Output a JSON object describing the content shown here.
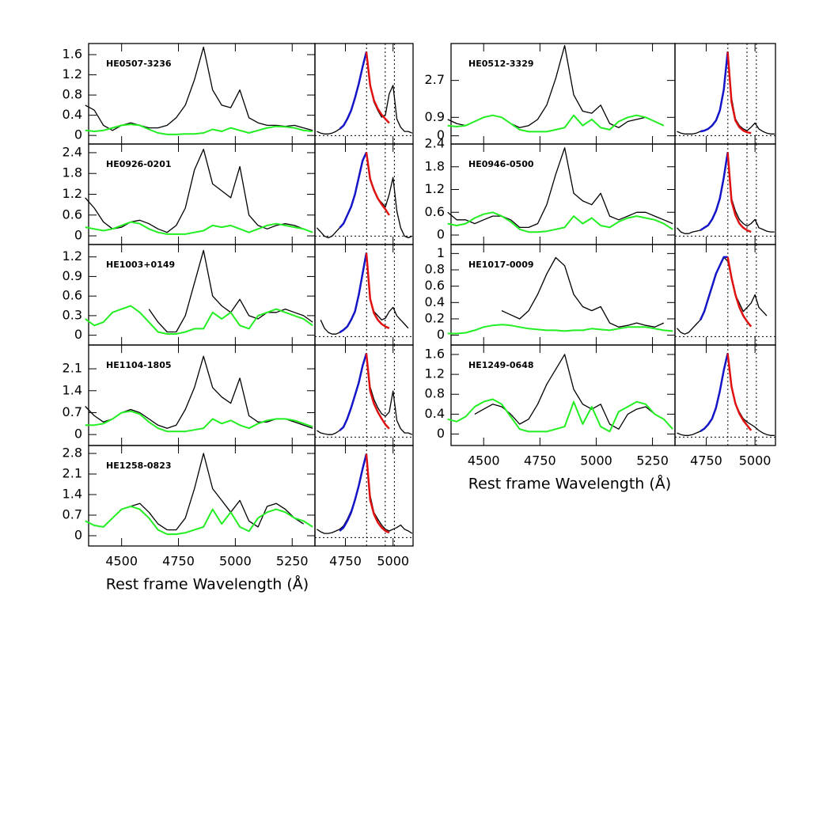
{
  "chart_data": {
    "type": "line",
    "x_label": "Rest frame Wavelength (Å)",
    "colors": {
      "spectrum": "#000000",
      "feii": "#22ee22",
      "blue": "#1515c8",
      "red": "#e01010"
    },
    "wide": {
      "xlim": [
        4355,
        5350
      ],
      "xticks": [
        4500,
        4750,
        5000,
        5250
      ],
      "x": [
        4340,
        4380,
        4420,
        4460,
        4500,
        4540,
        4580,
        4620,
        4660,
        4700,
        4740,
        4780,
        4820,
        4860,
        4900,
        4940,
        4980,
        5020,
        5060,
        5100,
        5140,
        5180,
        5220,
        5260,
        5300,
        5340
      ]
    },
    "zoom": {
      "xlim": [
        4590,
        5105
      ],
      "xticks": [
        4750,
        5000
      ],
      "ylim": [
        -0.1,
        1.1
      ],
      "lines": [
        4861,
        4959,
        5007
      ],
      "x": [
        4600,
        4620,
        4640,
        4660,
        4680,
        4700,
        4720,
        4740,
        4760,
        4780,
        4800,
        4820,
        4840,
        4860,
        4880,
        4900,
        4920,
        4940,
        4960,
        4980,
        5000,
        5020,
        5040,
        5060,
        5080,
        5100
      ],
      "blue_x": [
        4720,
        4740,
        4760,
        4780,
        4800,
        4820,
        4840,
        4860
      ],
      "red_x": [
        4860,
        4880,
        4900,
        4920,
        4940,
        4960,
        4980
      ]
    },
    "columns": [
      [
        {
          "name": "HE0507-3236",
          "ylim": [
            -0.17,
            1.82
          ],
          "yticks": [
            0,
            0.4,
            0.8,
            1.2,
            1.6
          ],
          "spectrum": [
            0.6,
            0.5,
            0.2,
            0.1,
            0.2,
            0.25,
            0.2,
            0.15,
            0.15,
            0.2,
            0.35,
            0.6,
            1.1,
            1.75,
            0.9,
            0.6,
            0.55,
            0.9,
            0.35,
            0.25,
            0.2,
            0.2,
            0.18,
            0.2,
            0.15,
            0.1
          ],
          "feii": [
            0.1,
            0.08,
            0.1,
            0.15,
            0.2,
            0.22,
            0.2,
            0.12,
            0.05,
            0.02,
            0.02,
            0.03,
            0.03,
            0.05,
            0.12,
            0.08,
            0.15,
            0.1,
            0.05,
            0.1,
            0.15,
            0.18,
            0.17,
            0.15,
            0.1,
            0.08
          ],
          "zoom_spectrum": [
            0.05,
            0.03,
            0.02,
            0.02,
            0.03,
            0.05,
            0.08,
            0.12,
            0.2,
            0.3,
            0.45,
            0.62,
            0.82,
            1.0,
            0.6,
            0.4,
            0.3,
            0.22,
            0.25,
            0.5,
            0.6,
            0.2,
            0.1,
            0.05,
            0.05,
            0.03
          ],
          "blue": [
            0.08,
            0.12,
            0.2,
            0.3,
            0.45,
            0.62,
            0.82,
            1.0
          ],
          "red": [
            1.0,
            0.6,
            0.42,
            0.32,
            0.25,
            0.2,
            0.15
          ]
        },
        {
          "name": "HE0926-0201",
          "ylim": [
            -0.25,
            2.65
          ],
          "yticks": [
            0,
            0.6,
            1.2,
            1.8,
            2.4
          ],
          "spectrum": [
            1.1,
            0.8,
            0.4,
            0.2,
            0.25,
            0.4,
            0.45,
            0.35,
            0.2,
            0.1,
            0.3,
            0.8,
            1.9,
            2.5,
            1.5,
            1.3,
            1.1,
            2.0,
            0.6,
            0.3,
            0.2,
            0.3,
            0.35,
            0.3,
            0.2,
            0.1
          ],
          "feii": [
            0.25,
            0.2,
            0.15,
            0.2,
            0.3,
            0.4,
            0.35,
            0.2,
            0.1,
            0.05,
            0.05,
            0.05,
            0.1,
            0.15,
            0.3,
            0.25,
            0.3,
            0.2,
            0.1,
            0.2,
            0.3,
            0.35,
            0.3,
            0.25,
            0.2,
            0.1
          ],
          "zoom_spectrum": [
            0.1,
            0.05,
            0.0,
            -0.02,
            0.0,
            0.05,
            0.1,
            0.15,
            0.25,
            0.35,
            0.5,
            0.7,
            0.9,
            1.0,
            0.7,
            0.55,
            0.45,
            0.4,
            0.35,
            0.5,
            0.7,
            0.3,
            0.1,
            0.0,
            -0.02,
            0.0
          ],
          "blue": [
            0.1,
            0.15,
            0.25,
            0.35,
            0.5,
            0.7,
            0.9,
            1.0
          ],
          "red": [
            1.0,
            0.68,
            0.55,
            0.45,
            0.38,
            0.32,
            0.25
          ]
        },
        {
          "name": "HE1003+0149",
          "ylim": [
            -0.15,
            1.39
          ],
          "yticks": [
            0,
            0.3,
            0.6,
            0.9,
            1.2
          ],
          "spectrum": [
            null,
            null,
            null,
            null,
            null,
            null,
            null,
            0.4,
            0.2,
            0.05,
            0.05,
            0.3,
            0.8,
            1.3,
            0.6,
            0.45,
            0.35,
            0.55,
            0.3,
            0.25,
            0.35,
            0.35,
            0.4,
            0.35,
            0.3,
            0.2
          ],
          "feii": [
            0.25,
            0.15,
            0.2,
            0.35,
            0.4,
            0.45,
            0.35,
            0.2,
            0.05,
            0.02,
            0.02,
            0.05,
            0.1,
            0.1,
            0.35,
            0.25,
            0.35,
            0.15,
            0.1,
            0.3,
            0.35,
            0.4,
            0.35,
            0.3,
            0.25,
            0.15
          ],
          "zoom_spectrum": [
            null,
            0.2,
            0.1,
            0.05,
            0.03,
            0.03,
            0.05,
            0.08,
            0.12,
            0.2,
            0.3,
            0.5,
            0.75,
            1.0,
            0.45,
            0.3,
            0.25,
            0.2,
            0.22,
            0.3,
            0.35,
            0.25,
            0.2,
            0.15,
            0.1,
            null
          ],
          "blue": [
            0.05,
            0.08,
            0.12,
            0.2,
            0.3,
            0.5,
            0.75,
            1.0
          ],
          "red": [
            1.0,
            0.45,
            0.28,
            0.2,
            0.15,
            0.12,
            0.1
          ]
        },
        {
          "name": "HE1104-1805",
          "ylim": [
            -0.35,
            2.86
          ],
          "yticks": [
            0,
            0.7,
            1.4,
            2.1
          ],
          "spectrum": [
            0.9,
            0.6,
            0.4,
            0.5,
            0.7,
            0.8,
            0.7,
            0.5,
            0.3,
            0.2,
            0.3,
            0.8,
            1.5,
            2.5,
            1.5,
            1.2,
            1.0,
            1.8,
            0.6,
            0.4,
            0.4,
            0.5,
            0.5,
            0.4,
            0.3,
            0.2
          ],
          "feii": [
            0.3,
            0.3,
            0.35,
            0.5,
            0.7,
            0.75,
            0.65,
            0.4,
            0.2,
            0.1,
            0.1,
            0.1,
            0.15,
            0.2,
            0.5,
            0.35,
            0.45,
            0.3,
            0.2,
            0.35,
            0.45,
            0.5,
            0.5,
            0.45,
            0.35,
            0.25
          ],
          "zoom_spectrum": [
            0.08,
            0.05,
            0.04,
            0.03,
            0.03,
            0.05,
            0.08,
            0.12,
            0.22,
            0.35,
            0.5,
            0.65,
            0.85,
            1.0,
            0.6,
            0.45,
            0.35,
            0.28,
            0.25,
            0.3,
            0.55,
            0.2,
            0.1,
            0.05,
            0.05,
            0.03
          ],
          "blue": [
            0.08,
            0.12,
            0.22,
            0.35,
            0.5,
            0.65,
            0.85,
            1.0
          ],
          "red": [
            1.0,
            0.55,
            0.4,
            0.3,
            0.22,
            0.15,
            0.1
          ]
        },
        {
          "name": "HE1258-0823",
          "ylim": [
            -0.35,
            3.07
          ],
          "yticks": [
            0,
            0.7,
            1.4,
            2.1,
            2.8
          ],
          "spectrum": [
            null,
            null,
            null,
            null,
            null,
            1.0,
            1.1,
            0.8,
            0.4,
            0.2,
            0.2,
            0.6,
            1.6,
            2.8,
            1.6,
            1.2,
            0.8,
            1.2,
            0.5,
            0.3,
            1.0,
            1.1,
            0.9,
            0.6,
            0.4,
            null
          ],
          "feii": [
            0.5,
            0.35,
            0.3,
            0.6,
            0.9,
            1.0,
            0.9,
            0.6,
            0.2,
            0.05,
            0.05,
            0.1,
            0.2,
            0.3,
            0.9,
            0.4,
            0.8,
            0.3,
            0.15,
            0.6,
            0.8,
            0.9,
            0.8,
            0.6,
            0.5,
            0.3
          ],
          "zoom_spectrum": [
            0.1,
            0.07,
            0.05,
            0.05,
            0.06,
            0.08,
            0.1,
            0.14,
            0.22,
            0.32,
            0.45,
            0.62,
            0.82,
            1.0,
            0.5,
            0.3,
            0.22,
            0.15,
            0.1,
            0.08,
            0.1,
            0.12,
            0.15,
            0.1,
            0.08,
            0.05
          ],
          "blue": [
            0.08,
            0.12,
            0.2,
            0.3,
            0.45,
            0.62,
            0.82,
            1.0
          ],
          "red": [
            1.0,
            0.45,
            0.28,
            0.18,
            0.12,
            0.08,
            0.06
          ]
        }
      ],
      [
        {
          "name": "HE0512-3329",
          "ylim": [
            -0.4,
            4.5
          ],
          "yticks": [
            0,
            0.9,
            2.7
          ],
          "spectrum": [
            0.8,
            0.6,
            0.5,
            0.7,
            0.9,
            1.0,
            0.9,
            0.6,
            0.4,
            0.5,
            0.8,
            1.5,
            2.8,
            4.4,
            2.0,
            1.2,
            1.1,
            1.5,
            0.6,
            0.4,
            0.7,
            0.8,
            0.9,
            0.7,
            0.5,
            null
          ],
          "feii": [
            0.5,
            0.45,
            0.5,
            0.7,
            0.9,
            1.0,
            0.9,
            0.6,
            0.3,
            0.2,
            0.2,
            0.2,
            0.3,
            0.4,
            1.0,
            0.5,
            0.8,
            0.4,
            0.3,
            0.7,
            0.9,
            1.0,
            0.9,
            0.7,
            0.5,
            null
          ],
          "zoom_spectrum": [
            0.05,
            0.03,
            0.02,
            0.02,
            0.02,
            0.03,
            0.05,
            0.06,
            0.08,
            0.12,
            0.18,
            0.3,
            0.55,
            1.0,
            0.45,
            0.2,
            0.12,
            0.08,
            0.06,
            0.1,
            0.15,
            0.08,
            0.05,
            0.03,
            0.02,
            0.02
          ],
          "blue": [
            0.05,
            0.06,
            0.08,
            0.12,
            0.18,
            0.3,
            0.55,
            1.0
          ],
          "red": [
            1.0,
            0.4,
            0.18,
            0.1,
            0.06,
            0.04,
            0.03
          ]
        },
        {
          "name": "HE0946-0500",
          "ylim": [
            -0.25,
            2.4
          ],
          "yticks": [
            0,
            0.6,
            1.2,
            1.8,
            2.4
          ],
          "spectrum": [
            0.6,
            0.4,
            0.4,
            0.3,
            0.4,
            0.5,
            0.5,
            0.4,
            0.2,
            0.2,
            0.3,
            0.8,
            1.6,
            2.3,
            1.1,
            0.9,
            0.8,
            1.1,
            0.5,
            0.4,
            0.5,
            0.6,
            0.6,
            0.5,
            0.4,
            0.3
          ],
          "feii": [
            0.3,
            0.25,
            0.3,
            0.45,
            0.55,
            0.6,
            0.5,
            0.35,
            0.15,
            0.08,
            0.08,
            0.1,
            0.15,
            0.2,
            0.5,
            0.3,
            0.45,
            0.25,
            0.2,
            0.35,
            0.45,
            0.5,
            0.45,
            0.4,
            0.3,
            0.15
          ],
          "zoom_spectrum": [
            0.1,
            0.05,
            0.03,
            0.03,
            0.05,
            0.06,
            0.07,
            0.1,
            0.13,
            0.2,
            0.3,
            0.45,
            0.7,
            1.0,
            0.45,
            0.3,
            0.2,
            0.15,
            0.12,
            0.15,
            0.2,
            0.1,
            0.08,
            0.06,
            0.05,
            0.05
          ],
          "blue": [
            0.07,
            0.1,
            0.13,
            0.2,
            0.3,
            0.45,
            0.7,
            1.0
          ],
          "red": [
            1.0,
            0.42,
            0.25,
            0.15,
            0.1,
            0.07,
            0.05
          ]
        },
        {
          "name": "HE1017-0009",
          "ylim": [
            -0.12,
            1.11
          ],
          "yticks": [
            0,
            0.2,
            0.4,
            0.6,
            0.8,
            1
          ],
          "spectrum": [
            null,
            null,
            null,
            null,
            null,
            null,
            0.3,
            0.25,
            0.2,
            0.3,
            0.5,
            0.75,
            0.95,
            0.85,
            0.5,
            0.35,
            0.3,
            0.35,
            0.15,
            0.1,
            0.12,
            0.15,
            0.12,
            0.1,
            0.15,
            null
          ],
          "feii": [
            0.02,
            0.02,
            0.03,
            0.06,
            0.1,
            0.12,
            0.13,
            0.12,
            0.1,
            0.08,
            0.07,
            0.06,
            0.06,
            0.05,
            0.06,
            0.06,
            0.08,
            0.07,
            0.06,
            0.08,
            0.1,
            0.1,
            0.1,
            0.08,
            0.06,
            0.05
          ],
          "zoom_spectrum": [
            0.1,
            0.05,
            0.03,
            0.05,
            0.1,
            0.15,
            0.2,
            0.3,
            0.45,
            0.6,
            0.75,
            0.85,
            0.95,
            0.9,
            0.7,
            0.5,
            0.4,
            0.3,
            0.35,
            0.4,
            0.5,
            0.35,
            0.3,
            0.25,
            null,
            null
          ],
          "blue": [
            0.2,
            0.3,
            0.45,
            0.6,
            0.75,
            0.85,
            0.95,
            0.95
          ],
          "red": [
            0.95,
            0.7,
            0.5,
            0.35,
            0.25,
            0.18,
            0.12
          ]
        },
        {
          "name": "HE1249-0648",
          "ylim": [
            -0.23,
            1.79
          ],
          "yticks": [
            0,
            0.4,
            0.8,
            1.2,
            1.6
          ],
          "spectrum": [
            null,
            null,
            null,
            0.4,
            0.5,
            0.6,
            0.55,
            0.4,
            0.2,
            0.3,
            0.6,
            1.0,
            1.3,
            1.6,
            0.9,
            0.6,
            0.5,
            0.6,
            0.2,
            0.1,
            0.4,
            0.5,
            0.55,
            0.4,
            null,
            null
          ],
          "feii": [
            0.3,
            0.25,
            0.35,
            0.55,
            0.65,
            0.7,
            0.6,
            0.35,
            0.1,
            0.05,
            0.05,
            0.05,
            0.1,
            0.15,
            0.65,
            0.2,
            0.55,
            0.15,
            0.05,
            0.45,
            0.55,
            0.65,
            0.6,
            0.4,
            0.3,
            0.1
          ],
          "zoom_spectrum": [
            0.05,
            0.03,
            0.02,
            0.02,
            0.03,
            0.05,
            0.07,
            0.1,
            0.15,
            0.22,
            0.35,
            0.55,
            0.8,
            1.0,
            0.6,
            0.4,
            0.3,
            0.22,
            0.18,
            0.15,
            0.12,
            0.08,
            0.05,
            0.03,
            0.02,
            0.02
          ],
          "blue": [
            0.07,
            0.1,
            0.15,
            0.22,
            0.35,
            0.55,
            0.8,
            1.0
          ],
          "red": [
            1.0,
            0.6,
            0.4,
            0.28,
            0.2,
            0.14,
            0.08
          ]
        }
      ]
    ]
  }
}
